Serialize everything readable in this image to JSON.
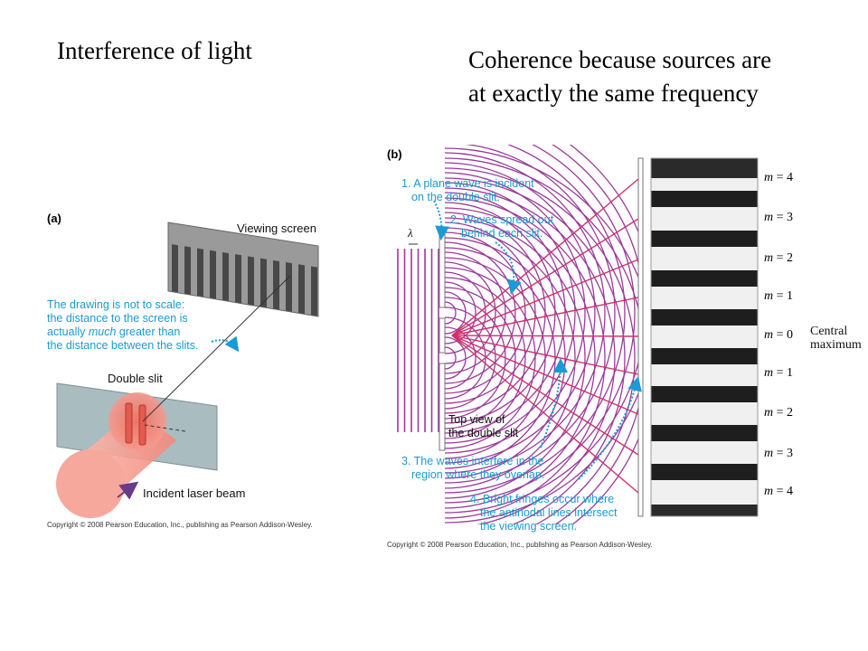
{
  "slide": {
    "title": "Interference of light",
    "subtitle_line1": "Coherence because sources are",
    "subtitle_line2": "at exactly the same frequency"
  },
  "figure_a": {
    "label": "(a)",
    "viewing_screen": "Viewing screen",
    "note_line1": "The drawing is not to scale:",
    "note_line2": "the distance to the screen is",
    "note_line3_pre": "actually ",
    "note_line3_em": "much",
    "note_line3_post": " greater than",
    "note_line4": "the distance between the slits.",
    "double_slit": "Double slit",
    "incident_beam": "Incident laser beam",
    "copyright": "Copyright © 2008 Pearson Education, Inc., publishing as Pearson Addison-Wesley."
  },
  "figure_b": {
    "label": "(b)",
    "lambda": "λ",
    "note1_line1": "1. A plane wave is incident",
    "note1_line2": "on the double slit.",
    "note2_line1": "2. Waves spread out",
    "note2_line2": "behind each slit.",
    "top_view_line1": "Top view of",
    "top_view_line2": "the double slit",
    "note3_line1": "3. The waves interfere in the",
    "note3_line2": "region where they overlap.",
    "note4_line1": "4. Bright fringes occur where",
    "note4_line2": "the antinodal lines intersect",
    "note4_line3": "the viewing screen.",
    "central_line1": "Central",
    "central_line2": "maximum",
    "m_symbol": "m",
    "m_values": [
      "= 4",
      "= 3",
      "= 2",
      "= 1",
      "= 0",
      "= 1",
      "= 2",
      "= 3",
      "= 4"
    ],
    "copyright": "Copyright © 2008 Pearson Education, Inc., publishing as Pearson Addison-Wesley."
  },
  "colors": {
    "annotation": "#1a9ad6",
    "wave": "#9b3a9b",
    "antinodal": "#d0306a",
    "laser": "#f4877a"
  }
}
